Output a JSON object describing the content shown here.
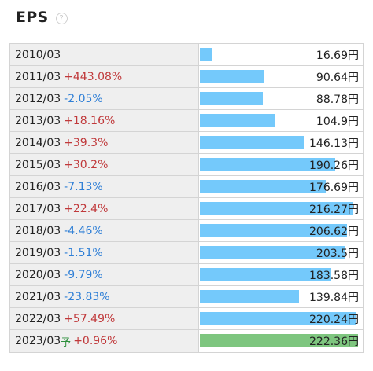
{
  "header": {
    "title": "EPS",
    "help_glyph": "?"
  },
  "colors": {
    "bar": "#74c9fb",
    "forecast_bar": "#7ec67f",
    "up": "#c0393b",
    "down": "#2f7fd6",
    "forecast_mark": "#2d8f3c"
  },
  "chart_data": {
    "type": "bar",
    "orientation": "horizontal",
    "title": "EPS",
    "unit": "円",
    "xlim": [
      0,
      222.36
    ],
    "rows": [
      {
        "year": "2010/03",
        "change": "",
        "dir": "",
        "forecast": "",
        "value": 16.69,
        "value_label": "16.69円"
      },
      {
        "year": "2011/03",
        "change": "+443.08%",
        "dir": "up",
        "forecast": "",
        "value": 90.64,
        "value_label": "90.64円"
      },
      {
        "year": "2012/03",
        "change": "-2.05%",
        "dir": "down",
        "forecast": "",
        "value": 88.78,
        "value_label": "88.78円"
      },
      {
        "year": "2013/03",
        "change": "+18.16%",
        "dir": "up",
        "forecast": "",
        "value": 104.9,
        "value_label": "104.9円"
      },
      {
        "year": "2014/03",
        "change": "+39.3%",
        "dir": "up",
        "forecast": "",
        "value": 146.13,
        "value_label": "146.13円"
      },
      {
        "year": "2015/03",
        "change": "+30.2%",
        "dir": "up",
        "forecast": "",
        "value": 190.26,
        "value_label": "190.26円"
      },
      {
        "year": "2016/03",
        "change": "-7.13%",
        "dir": "down",
        "forecast": "",
        "value": 176.69,
        "value_label": "176.69円"
      },
      {
        "year": "2017/03",
        "change": "+22.4%",
        "dir": "up",
        "forecast": "",
        "value": 216.27,
        "value_label": "216.27円"
      },
      {
        "year": "2018/03",
        "change": "-4.46%",
        "dir": "down",
        "forecast": "",
        "value": 206.62,
        "value_label": "206.62円"
      },
      {
        "year": "2019/03",
        "change": "-1.51%",
        "dir": "down",
        "forecast": "",
        "value": 203.5,
        "value_label": "203.5円"
      },
      {
        "year": "2020/03",
        "change": "-9.79%",
        "dir": "down",
        "forecast": "",
        "value": 183.58,
        "value_label": "183.58円"
      },
      {
        "year": "2021/03",
        "change": "-23.83%",
        "dir": "down",
        "forecast": "",
        "value": 139.84,
        "value_label": "139.84円"
      },
      {
        "year": "2022/03",
        "change": "+57.49%",
        "dir": "up",
        "forecast": "",
        "value": 220.24,
        "value_label": "220.24円"
      },
      {
        "year": "2023/03",
        "change": "+0.96%",
        "dir": "up",
        "forecast": "予",
        "value": 222.36,
        "value_label": "222.36円"
      }
    ]
  }
}
